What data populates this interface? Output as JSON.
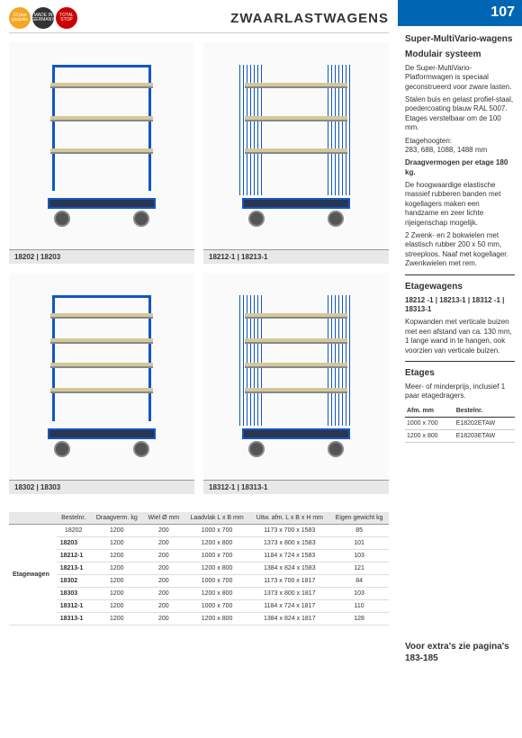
{
  "header": {
    "title": "ZWAARLASTWAGENS",
    "page_number": "107",
    "badges": [
      "10 jaar garantie",
      "MADE IN GERMANY",
      "TOTAL STOP"
    ]
  },
  "products": [
    {
      "caption": "18202 | 18203",
      "type": "open",
      "shelves": 3
    },
    {
      "caption": "18212-1 | 18213-1",
      "type": "mesh",
      "shelves": 3
    },
    {
      "caption": "18302 | 18303",
      "type": "open",
      "shelves": 4
    },
    {
      "caption": "18312-1 | 18313-1",
      "type": "mesh",
      "shelves": 4
    }
  ],
  "spec_table": {
    "row_label": "Etagewagen",
    "headers": [
      "Bestelnr.",
      "Draagverm. kg",
      "Wiel Ø mm",
      "Laadvlak L x B mm",
      "Uitw. afm. L x B x H mm",
      "Eigen gewicht kg"
    ],
    "rows": [
      [
        "18202",
        "1200",
        "200",
        "1000 x 700",
        "1173 x 700 x 1583",
        "85"
      ],
      [
        "18203",
        "1200",
        "200",
        "1200 x 800",
        "1373 x 800 x 1583",
        "101"
      ],
      [
        "18212-1",
        "1200",
        "200",
        "1000 x 700",
        "1184 x 724 x 1583",
        "103"
      ],
      [
        "18213-1",
        "1200",
        "200",
        "1200 x 800",
        "1384 x 824 x 1583",
        "121"
      ],
      [
        "18302",
        "1200",
        "200",
        "1000 x 700",
        "1173 x 700 x 1817",
        "84"
      ],
      [
        "18303",
        "1200",
        "200",
        "1200 x 800",
        "1373 x 800 x 1817",
        "103"
      ],
      [
        "18312-1",
        "1200",
        "200",
        "1000 x 700",
        "1184 x 724 x 1817",
        "110"
      ],
      [
        "18313-1",
        "1200",
        "200",
        "1200 x 800",
        "1384 x 824 x 1817",
        "128"
      ]
    ]
  },
  "sidebar": {
    "h1": "Super-MultiVario-wagens",
    "h1b": "Modulair systeem",
    "p1": "De Super-MultiVario-Platformwagen is speciaal geconstrueerd voor zware lasten.",
    "p2": "Stalen buis en gelast profiel-staal, poedercoating blauw RAL 5007. Etages verstelbaar om de 100 mm.",
    "p3_label": "Etagehoogten:",
    "p3": "283, 688, 1088, 1488 mm",
    "p4": "Draagvermogen per etage 180 kg.",
    "p5": "De hoogwaardige elastische massief rubberen banden met kogellagers maken een handzame en zeer lichte rijeigenschap mogelijk.",
    "p6": "2 Zwenk- en 2 bokwielen met elastisch rubber 200 x 50 mm, streeploos. Naaf met kogellager. Zwenkwielen met rem.",
    "h2": "Etagewagens",
    "h2_models": "18212 -1 | 18213-1 | 18312 -1 | 18313-1",
    "p7": "Kopwanden met verticale buizen met een afstand van ca. 130 mm, 1 lange wand in te hangen, ook voorzien van verticale buizen.",
    "h3": "Etages",
    "p8": "Meer- of minderprijs, inclusief 1 paar etagedragers.",
    "etage_table": {
      "headers": [
        "Afm. mm",
        "Bestelnr."
      ],
      "rows": [
        [
          "1000 x 700",
          "E18202ETAW"
        ],
        [
          "1200 x 800",
          "E18203ETAW"
        ]
      ]
    },
    "footer": "Voor extra's zie pagina's 183-185"
  },
  "colors": {
    "blue": "#1156c4",
    "accent": "#0066b3",
    "shelf": "#d4c89a",
    "base": "#2a3550"
  }
}
